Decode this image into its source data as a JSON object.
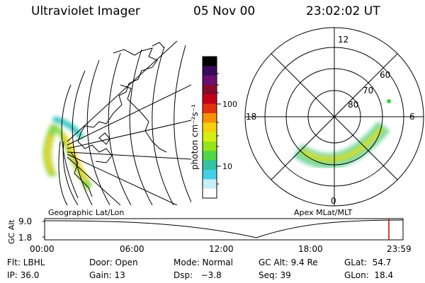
{
  "header": {
    "instrument": "Ultraviolet Imager",
    "date": "05 Nov 00",
    "time": "23:02:02 UT"
  },
  "geo_map": {
    "label": "Geographic Lat/Lon"
  },
  "colorbar": {
    "unit_label": "photon cm⁻²s⁻¹",
    "ticks": [
      "100",
      "10"
    ],
    "colors": [
      "#000000",
      "#3b0b5a",
      "#6a1070",
      "#8a0a2a",
      "#c4001a",
      "#e3300d",
      "#f8900a",
      "#f5d20e",
      "#d6ef12",
      "#96e51a",
      "#4fd64a",
      "#31c3a2",
      "#45cfe6",
      "#c6eef6",
      "#ffffff"
    ]
  },
  "polar_plot": {
    "label": "Apex MLat/MLT",
    "mlt_labels": {
      "top": "12",
      "left": "18",
      "right": "6",
      "bottom": "0"
    },
    "lat_labels": [
      "60",
      "70",
      "80"
    ]
  },
  "altitude_plot": {
    "ylabel": "GC Alt",
    "yticks": [
      "9.0",
      "1.8"
    ],
    "xticks": [
      "00:00",
      "06:00",
      "12:00",
      "18:00",
      "23:59"
    ],
    "marker_color": "#cc0000"
  },
  "status": {
    "flt": "Flt: LBHL",
    "ip": "IP: 36.0",
    "door": "Door: Open",
    "gain": "Gain: 13",
    "mode": "Mode: Normal",
    "dsp": "Dsp:   −3.8",
    "gc_alt": "GC Alt: 9.4 Re",
    "seq": "Seq: 39",
    "glat": "GLat:  54.7",
    "glon": "GLon:  18.4"
  }
}
